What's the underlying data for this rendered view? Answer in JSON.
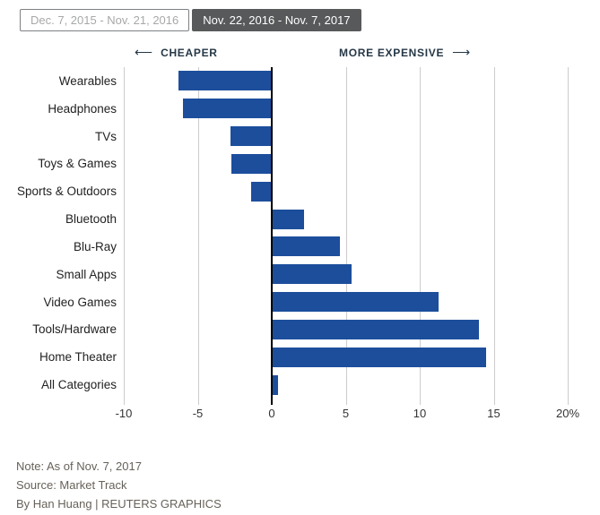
{
  "tabs": [
    {
      "label": "Dec. 7, 2015 - Nov. 21, 2016",
      "active": false
    },
    {
      "label": "Nov. 22, 2016 - Nov. 7, 2017",
      "active": true
    }
  ],
  "direction_labels": {
    "left_arrow": "⟵",
    "cheaper": "CHEAPER",
    "more_expensive": "MORE EXPENSIVE",
    "right_arrow": "⟶"
  },
  "chart_data": {
    "type": "bar",
    "orientation": "horizontal",
    "categories": [
      "Wearables",
      "Headphones",
      "TVs",
      "Toys & Games",
      "Sports & Outdoors",
      "Bluetooth",
      "Blu-Ray",
      "Small Apps",
      "Video Games",
      "Tools/Hardware",
      "Home Theater",
      "All Categories"
    ],
    "values": [
      -6.3,
      -6.0,
      -2.8,
      -2.7,
      -1.4,
      2.2,
      4.6,
      5.4,
      11.3,
      14.0,
      14.5,
      0.4
    ],
    "unit": "percent price change",
    "xlim": [
      -10,
      20
    ],
    "xticks": [
      -10,
      -5,
      0,
      5,
      10,
      15,
      20
    ],
    "xtick_labels": [
      "-10",
      "-5",
      "0",
      "5",
      "10",
      "15",
      "20%"
    ],
    "grid": true,
    "legend": "none"
  },
  "colors": {
    "bar": "#1c4e9c",
    "gridline": "#cccccc",
    "zero_line": "#000000",
    "active_tab_bg": "#58595b",
    "direction_text": "#253746"
  },
  "footer": {
    "note": "Note: As of Nov. 7, 2017",
    "source": "Source: Market Track",
    "byline": "By Han Huang | REUTERS GRAPHICS"
  }
}
